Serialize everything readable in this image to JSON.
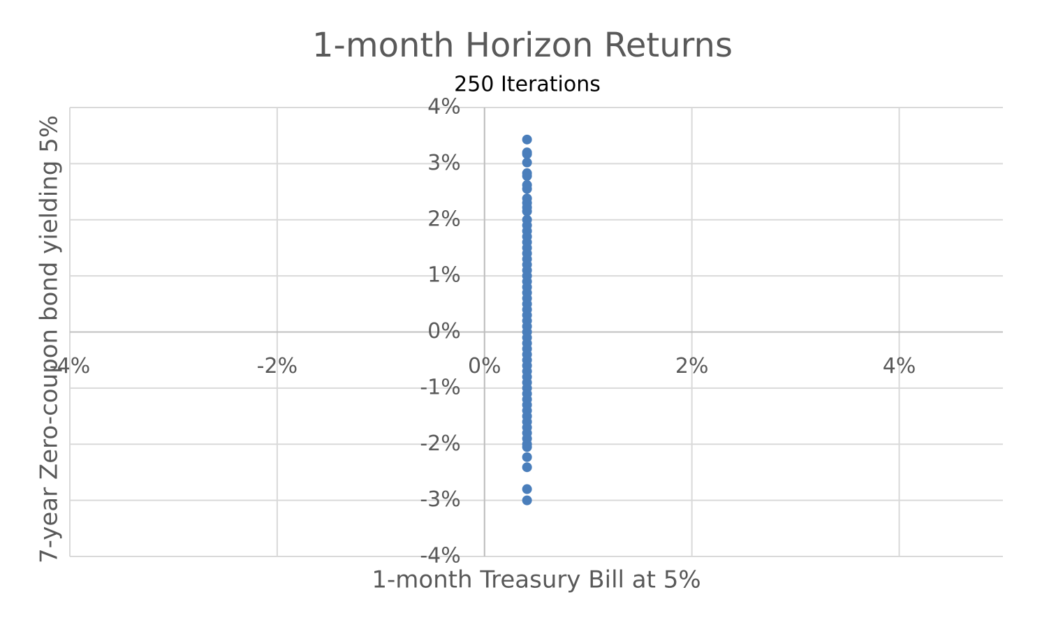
{
  "chart_data": {
    "type": "scatter",
    "title": "1-month Horizon Returns",
    "subtitle": "250 Iterations",
    "x_label": "1-month Treasury Bill at 5%",
    "y_label": "7-year Zero-coupon bond yielding 5%",
    "color": "#4a7ebb",
    "grid": true,
    "xlim": [
      -4,
      5
    ],
    "ylim": [
      -4,
      4
    ],
    "xticks": [
      {
        "value": -4,
        "label": "-4%"
      },
      {
        "value": -2,
        "label": "-2%"
      },
      {
        "value": 0,
        "label": "0%"
      },
      {
        "value": 2,
        "label": "2%"
      },
      {
        "value": 4,
        "label": "4%"
      }
    ],
    "yticks": [
      {
        "value": -4,
        "label": "-4%"
      },
      {
        "value": -3,
        "label": "-3%"
      },
      {
        "value": -2,
        "label": "-2%"
      },
      {
        "value": -1,
        "label": "-1%"
      },
      {
        "value": 0,
        "label": "0%"
      },
      {
        "value": 1,
        "label": "1%"
      },
      {
        "value": 2,
        "label": "2%"
      },
      {
        "value": 3,
        "label": "3%"
      },
      {
        "value": 4,
        "label": "4%"
      }
    ],
    "x": [
      0.41,
      0.41,
      0.41,
      0.41,
      0.41,
      0.41,
      0.41,
      0.41,
      0.41,
      0.41,
      0.41,
      0.41,
      0.41,
      0.41,
      0.41,
      0.41,
      0.41,
      0.41,
      0.41,
      0.41,
      0.41,
      0.41,
      0.41,
      0.41,
      0.41,
      0.41,
      0.41,
      0.41,
      0.41,
      0.41,
      0.41,
      0.41,
      0.41,
      0.41,
      0.41,
      0.41,
      0.41,
      0.41,
      0.41,
      0.41,
      0.41,
      0.41,
      0.41,
      0.41,
      0.41,
      0.41,
      0.41,
      0.41,
      0.41,
      0.41,
      0.41,
      0.41,
      0.41,
      0.41,
      0.41,
      0.41,
      0.41,
      0.41
    ],
    "y": [
      3.43,
      3.2,
      3.17,
      3.02,
      2.83,
      2.78,
      2.62,
      2.55,
      2.38,
      2.3,
      2.22,
      2.15,
      2.0,
      1.9,
      1.8,
      1.7,
      1.6,
      1.5,
      1.4,
      1.3,
      1.2,
      1.1,
      1.0,
      0.9,
      0.8,
      0.7,
      0.6,
      0.5,
      0.4,
      0.3,
      0.2,
      0.1,
      0,
      -0.1,
      -0.2,
      -0.3,
      -0.4,
      -0.5,
      -0.6,
      -0.7,
      -0.8,
      -0.9,
      -1.0,
      -1.1,
      -1.2,
      -1.3,
      -1.4,
      -1.5,
      -1.6,
      -1.7,
      -1.8,
      -1.9,
      -2.0,
      -2.05,
      -2.23,
      -2.41,
      -2.8,
      -3.0
    ]
  }
}
